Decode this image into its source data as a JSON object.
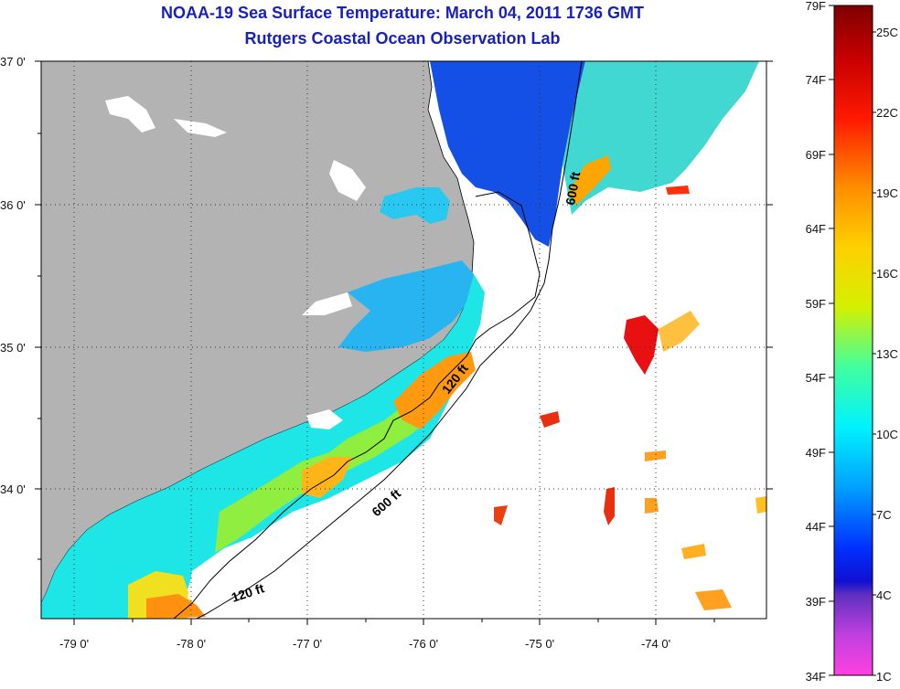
{
  "title": "NOAA-19 Sea Surface Temperature:  March 04, 2011 1736 GMT",
  "subtitle": "Rutgers Coastal Ocean Observation Lab",
  "map": {
    "lon_ticks": [
      "-79 0'",
      "-78 0'",
      "-77 0'",
      "-76 0'",
      "-75 0'",
      "-74 0'"
    ],
    "lat_ticks": [
      "37 0'",
      "36 0'",
      "35 0'",
      "34 0'"
    ],
    "contours": [
      "600 ft",
      "120 ft",
      "600 ft",
      "120 ft"
    ],
    "colors": {
      "land": "#b3b3b3",
      "no_data": "#ffffff",
      "coast": "#000000"
    }
  },
  "colorbar": {
    "f_labels": [
      "79F",
      "74F",
      "69F",
      "64F",
      "59F",
      "54F",
      "49F",
      "44F",
      "39F",
      "34F"
    ],
    "c_labels": [
      "25C",
      "22C",
      "19C",
      "16C",
      "13C",
      "10C",
      "7C",
      "4C",
      "1C"
    ],
    "range_f": [
      34,
      79
    ]
  }
}
